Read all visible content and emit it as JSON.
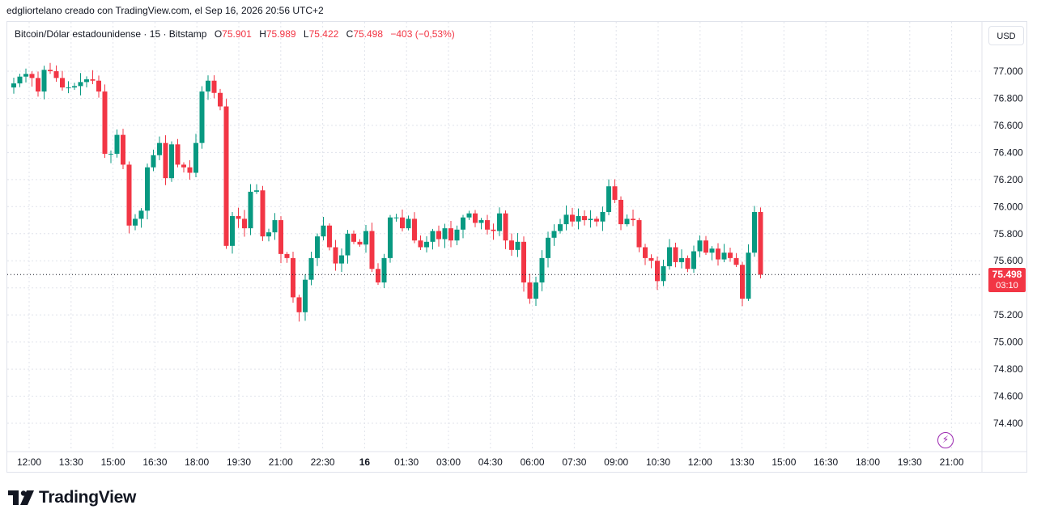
{
  "header": {
    "caption": "edgliortelano creado con TradingView.com, el Sep 16, 2026 20:56 UTC+2"
  },
  "legend": {
    "symbol": "Bitcoin/Dólar estadounidense · 15 · Bitstamp",
    "o_label": "O",
    "o_value": "75.901",
    "h_label": "H",
    "h_value": "75.989",
    "l_label": "L",
    "l_value": "75.422",
    "c_label": "C",
    "c_value": "75.498",
    "change": "−403 (−0,53%)"
  },
  "toolbar": {
    "currency": "USD"
  },
  "last_price": {
    "price": "75.498",
    "countdown": "03:10"
  },
  "brand": {
    "name": "TradingView",
    "logo_icon": "tradingview-logo-icon"
  },
  "misc": {
    "bolt_icon": "lightning-icon"
  },
  "colors": {
    "up": "#089981",
    "down": "#f23645",
    "grid": "#e0e3eb"
  },
  "chart_data": {
    "type": "candlestick",
    "y_axis": {
      "range": [
        74300,
        77250
      ],
      "ticks": [
        77000,
        76800,
        76600,
        76400,
        76200,
        76000,
        75800,
        75600,
        75400,
        75200,
        75000,
        74800,
        74600,
        74400
      ],
      "tick_labels": [
        "77.000",
        "76.800",
        "76.600",
        "76.400",
        "76.200",
        "76.000",
        "75.800",
        "75.600",
        "75.400",
        "75.200",
        "75.000",
        "74.800",
        "74.600",
        "74.400"
      ]
    },
    "x_axis": {
      "tick_labels": [
        "12:00",
        "13:30",
        "15:00",
        "16:30",
        "18:00",
        "19:30",
        "21:00",
        "22:30",
        "16",
        "01:30",
        "03:00",
        "04:30",
        "06:00",
        "07:30",
        "09:00",
        "10:30",
        "12:00",
        "13:30",
        "15:00",
        "16:30",
        "18:00",
        "19:30",
        "21:00"
      ]
    },
    "closes": [
      76910,
      76960,
      76980,
      76950,
      76850,
      77010,
      77000,
      76950,
      76880,
      76880,
      76890,
      76920,
      76940,
      76930,
      76850,
      76390,
      76390,
      76530,
      76310,
      75860,
      75910,
      75970,
      76290,
      76380,
      76470,
      76210,
      76460,
      76310,
      76290,
      76250,
      76470,
      76850,
      76930,
      76840,
      76740,
      75710,
      75930,
      75910,
      75840,
      76110,
      76120,
      75780,
      75810,
      75900,
      75650,
      75620,
      75330,
      75220,
      75460,
      75620,
      75780,
      75860,
      75700,
      75580,
      75640,
      75800,
      75740,
      75720,
      75820,
      75540,
      75440,
      75620,
      75920,
      75920,
      75840,
      75910,
      75750,
      75700,
      75740,
      75820,
      75760,
      75840,
      75750,
      75830,
      75920,
      75950,
      75880,
      75900,
      75830,
      75820,
      75950,
      75750,
      75680,
      75740,
      75440,
      75320,
      75440,
      75620,
      75770,
      75820,
      75870,
      75940,
      75890,
      75930,
      75900,
      75910,
      75890,
      75960,
      76150,
      76050,
      75870,
      75910,
      75900,
      75700,
      75620,
      75600,
      75450,
      75560,
      75700,
      75590,
      75620,
      75540,
      75670,
      75750,
      75660,
      75690,
      75610,
      75660,
      75620,
      75570,
      75320,
      75660,
      75960,
      75498
    ]
  }
}
